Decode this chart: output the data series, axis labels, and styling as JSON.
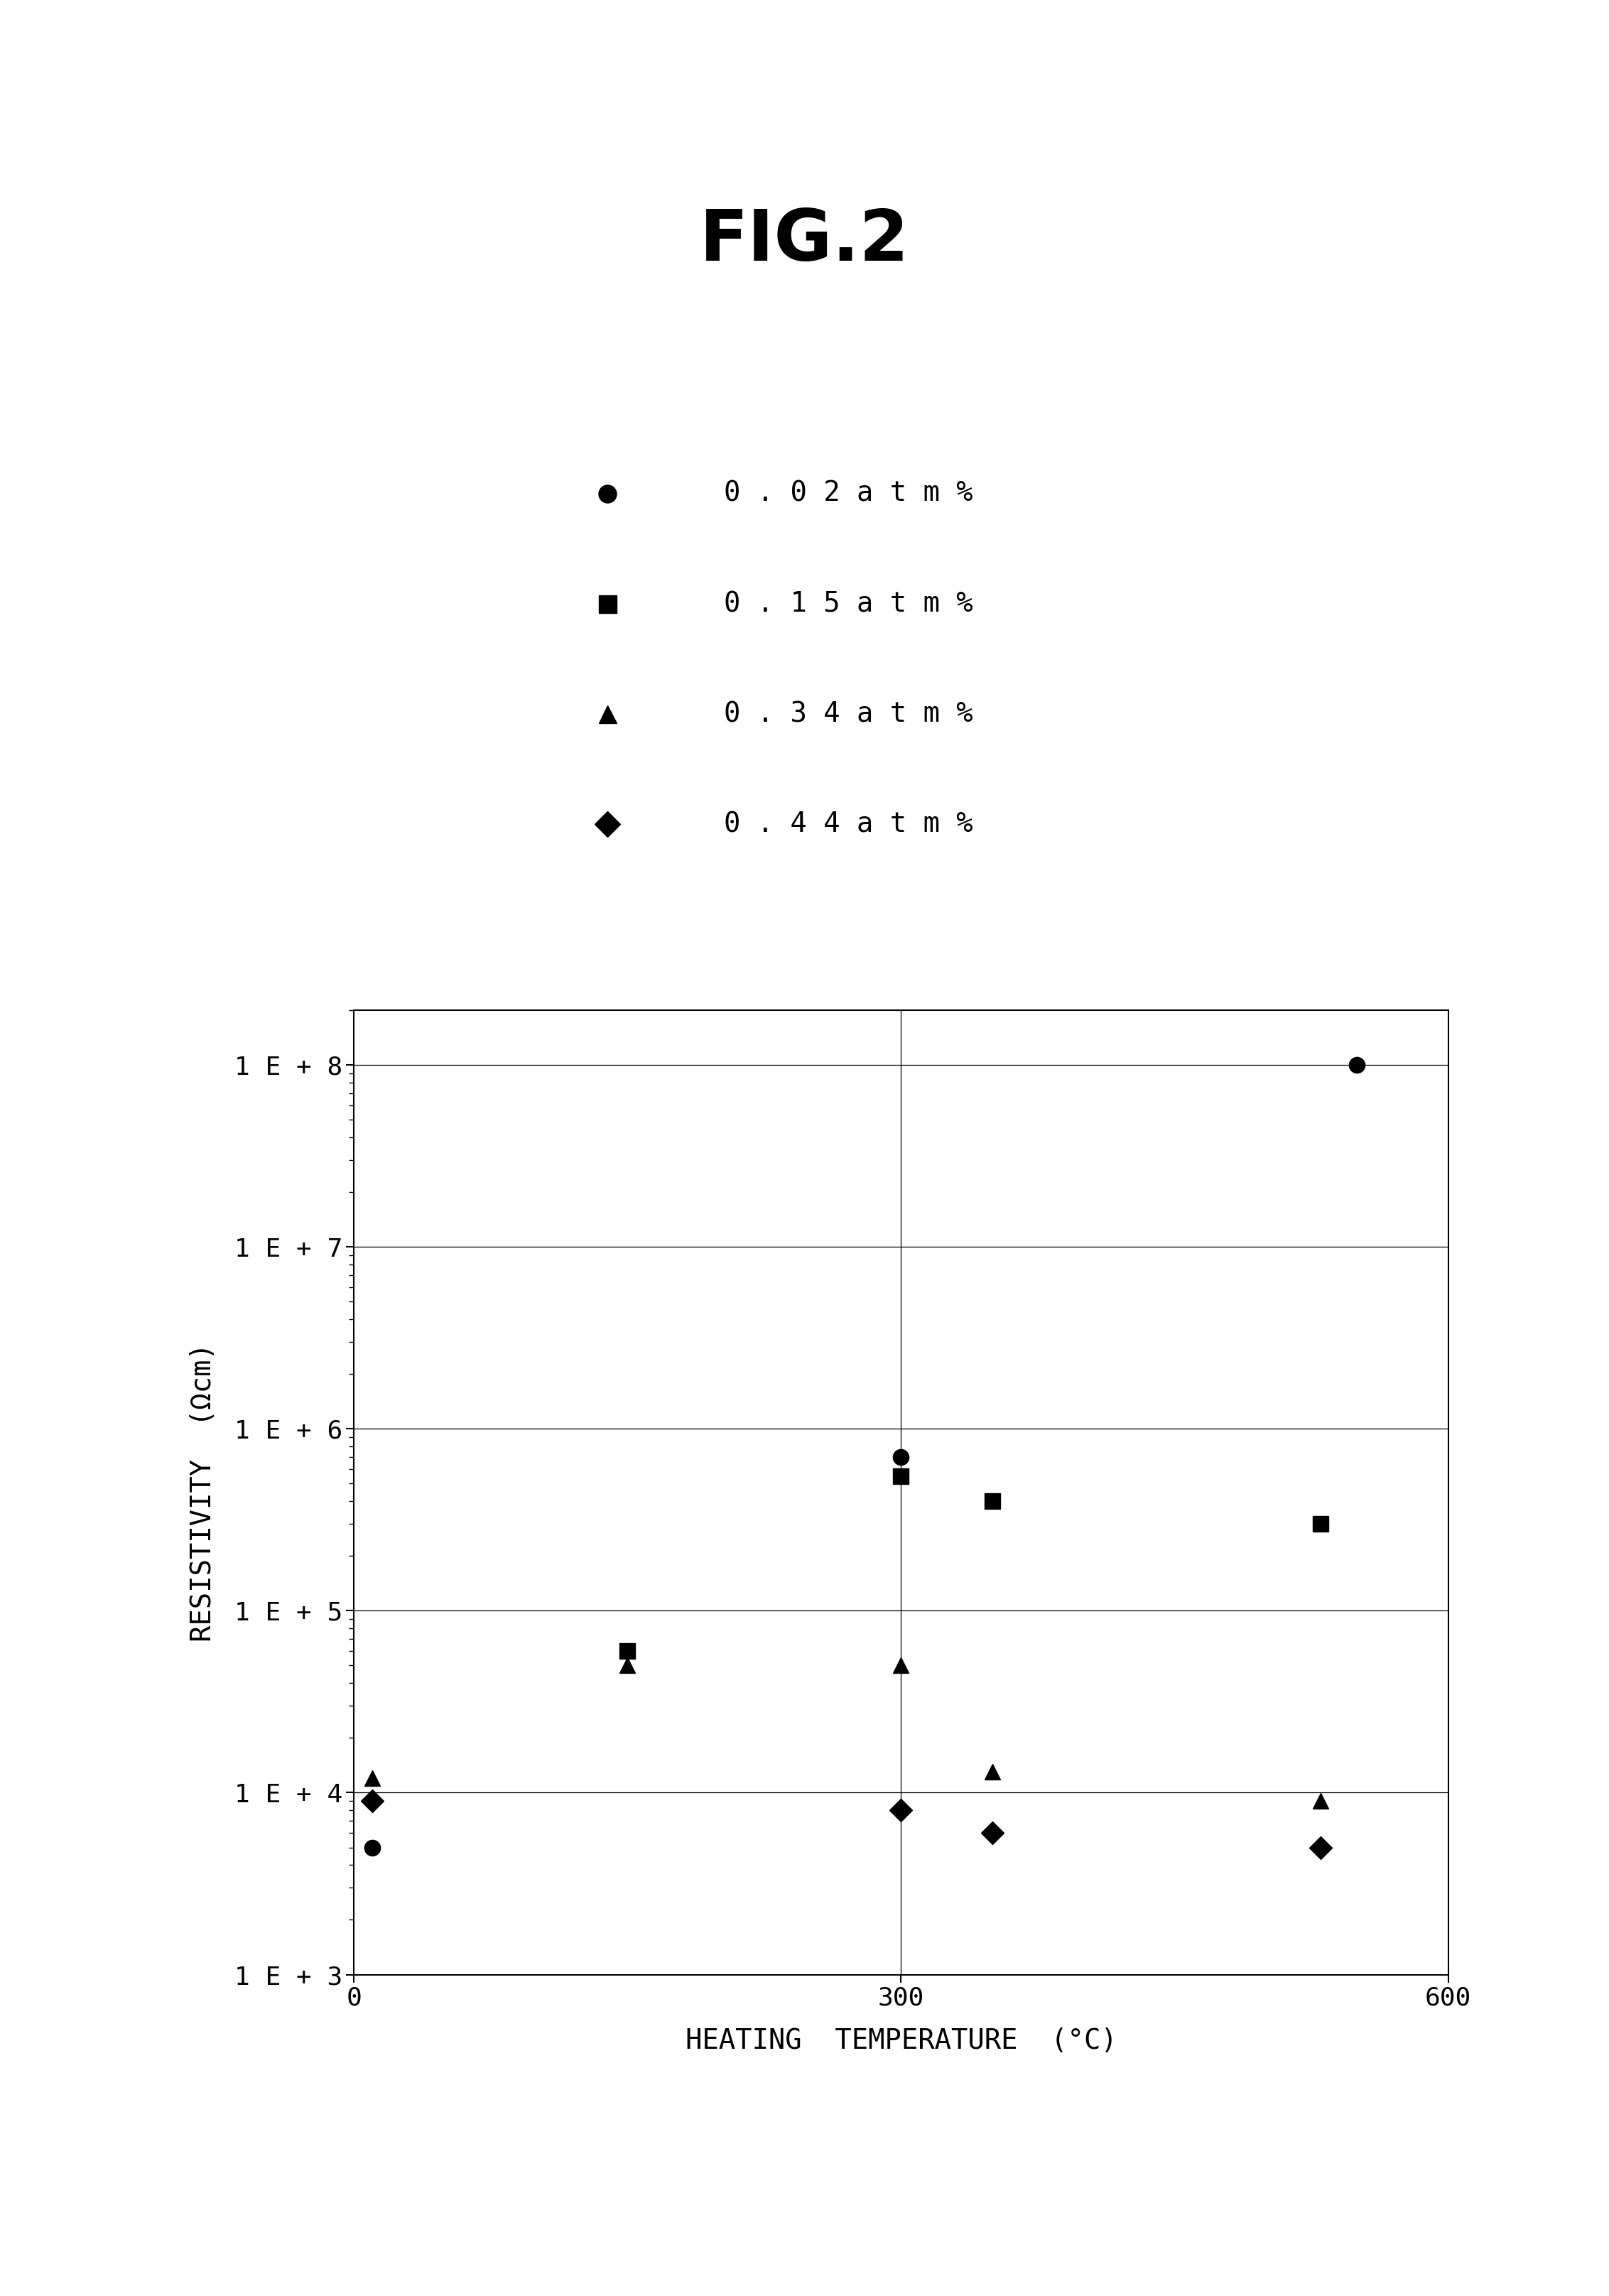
{
  "title": "FIG.2",
  "xlabel": "HEATING  TEMPERATURE  (°C)",
  "ylabel": "RESISTIVITY  (Ωcm)",
  "xlim": [
    0,
    600
  ],
  "yticks": [
    1000.0,
    10000.0,
    100000.0,
    1000000.0,
    10000000.0,
    100000000.0
  ],
  "ytick_labels": [
    "1 E + 3",
    "1 E + 4",
    "1 E + 5",
    "1 E + 6",
    "1 E + 7",
    "1 E + 8"
  ],
  "xticks": [
    0,
    300,
    600
  ],
  "grid_x_lines": [
    300
  ],
  "grid_y_lines": [
    10000.0,
    100000.0,
    1000000.0,
    10000000.0,
    100000000.0
  ],
  "legend_entries": [
    "0 . 0 2 a t m %",
    "0 . 1 5 a t m %",
    "0 . 3 4 a t m %",
    "0 . 4 4 a t m %"
  ],
  "legend_markers": [
    "o",
    "s",
    "^",
    "D"
  ],
  "series": [
    {
      "label": "0.02atm%",
      "marker": "o",
      "x": [
        10,
        300,
        550
      ],
      "y": [
        5000,
        700000.0,
        100000000.0
      ]
    },
    {
      "label": "0.15atm%",
      "marker": "s",
      "x": [
        150,
        300,
        350,
        530
      ],
      "y": [
        60000.0,
        550000.0,
        400000.0,
        300000.0
      ]
    },
    {
      "label": "0.34atm%",
      "marker": "^",
      "x": [
        10,
        150,
        300,
        350,
        530
      ],
      "y": [
        12000.0,
        50000.0,
        50000.0,
        13000.0,
        9000.0
      ]
    },
    {
      "label": "0.44atm%",
      "marker": "D",
      "x": [
        10,
        300,
        350,
        530
      ],
      "y": [
        9000.0,
        8000.0,
        6000.0,
        5000.0
      ]
    }
  ],
  "background_color": "#ffffff",
  "marker_color": "#000000",
  "marker_size": 16,
  "title_fontsize": 72,
  "label_fontsize": 28,
  "tick_fontsize": 26,
  "legend_fontsize": 28
}
